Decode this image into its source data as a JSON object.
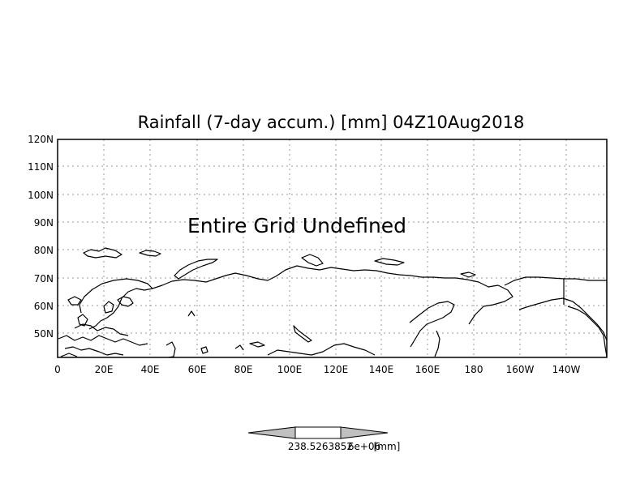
{
  "title": "Rainfall (7-day accum.) [mm] 04Z10Aug2018",
  "message": "Entire Grid Undefined",
  "y_ticks": [
    "120N",
    "110N",
    "100N",
    "90N",
    "80N",
    "70N",
    "60N",
    "50N"
  ],
  "x_ticks": [
    "0",
    "20E",
    "40E",
    "60E",
    "80E",
    "100E",
    "120E",
    "140E",
    "160E",
    "180",
    "160W",
    "140W"
  ],
  "colorbar": {
    "value_label": "238.5263852",
    "overlap_label": "6e+06",
    "unit_label": "[mm]"
  },
  "colors": {
    "line": "#000000",
    "grid": "#9a9a9a",
    "colorbar_arrow": "#c0c0c0",
    "background": "#ffffff"
  }
}
